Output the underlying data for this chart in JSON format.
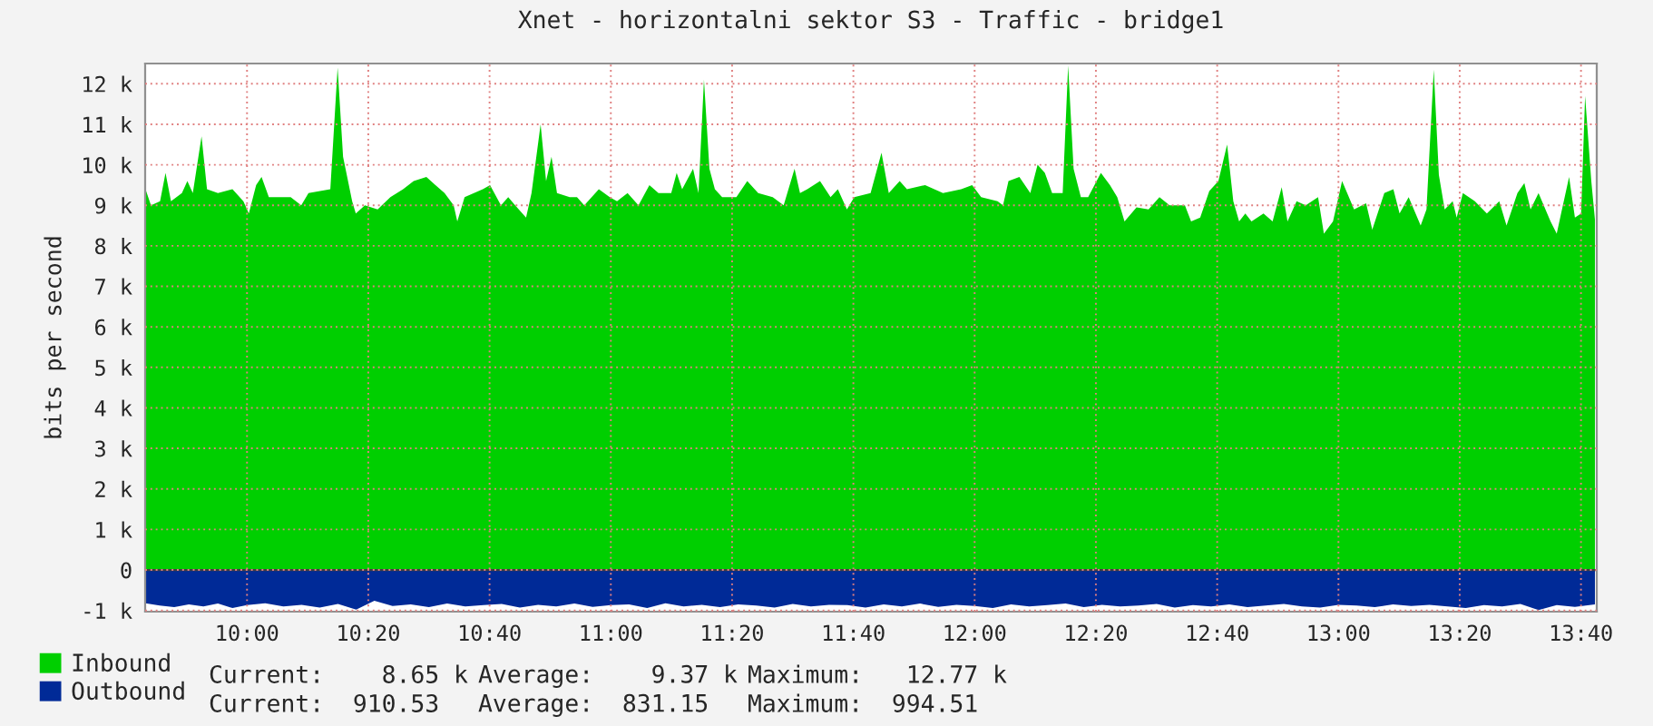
{
  "chart_data": {
    "type": "area",
    "title": "Xnet - horizontalni sektor S3 - Traffic - bridge1",
    "ylabel": "bits per second",
    "xlim": [
      9.72,
      13.71
    ],
    "xticks": [
      {
        "value": 10,
        "label": "10:00"
      },
      {
        "value": 10.3333,
        "label": "10:20"
      },
      {
        "value": 10.6667,
        "label": "10:40"
      },
      {
        "value": 11,
        "label": "11:00"
      },
      {
        "value": 11.3333,
        "label": "11:20"
      },
      {
        "value": 11.6667,
        "label": "11:40"
      },
      {
        "value": 12,
        "label": "12:00"
      },
      {
        "value": 12.3333,
        "label": "12:20"
      },
      {
        "value": 12.6667,
        "label": "12:40"
      },
      {
        "value": 13,
        "label": "13:00"
      },
      {
        "value": 13.3333,
        "label": "13:20"
      },
      {
        "value": 13.6667,
        "label": "13:40"
      }
    ],
    "ylim": [
      -1030,
      12500
    ],
    "yticks": [
      {
        "value": -1000,
        "label": "-1 k"
      },
      0,
      {
        "value": 1000,
        "label": "1 k"
      },
      {
        "value": 2000,
        "label": "2 k"
      },
      {
        "value": 3000,
        "label": "3 k"
      },
      {
        "value": 4000,
        "label": "4 k"
      },
      {
        "value": 5000,
        "label": "5 k"
      },
      {
        "value": 6000,
        "label": "6 k"
      },
      {
        "value": 7000,
        "label": "7 k"
      },
      {
        "value": 8000,
        "label": "8 k"
      },
      {
        "value": 9000,
        "label": "9 k"
      },
      {
        "value": 10000,
        "label": "10 k"
      },
      {
        "value": 11000,
        "label": "11 k"
      },
      {
        "value": 12000,
        "label": "12 k"
      }
    ],
    "grid": true,
    "legend": "bottom",
    "series": [
      {
        "name": "Inbound",
        "color": "#00cf00",
        "x": [
          9.721,
          9.736,
          9.761,
          9.776,
          9.791,
          9.821,
          9.836,
          9.851,
          9.875,
          9.89,
          9.92,
          9.96,
          9.99,
          10.005,
          10.025,
          10.04,
          10.06,
          10.095,
          10.12,
          10.149,
          10.169,
          10.229,
          10.249,
          10.264,
          10.289,
          10.299,
          10.324,
          10.359,
          10.394,
          10.429,
          10.458,
          10.493,
          10.518,
          10.543,
          10.568,
          10.578,
          10.598,
          10.648,
          10.668,
          10.698,
          10.718,
          10.737,
          10.767,
          10.782,
          10.807,
          10.822,
          10.837,
          10.852,
          10.887,
          10.907,
          10.927,
          10.967,
          10.997,
          11.017,
          11.046,
          11.076,
          11.106,
          11.131,
          11.166,
          11.181,
          11.196,
          11.226,
          11.241,
          11.256,
          11.271,
          11.286,
          11.306,
          11.345,
          11.375,
          11.405,
          11.445,
          11.475,
          11.505,
          11.52,
          11.54,
          11.575,
          11.604,
          11.624,
          11.649,
          11.669,
          11.714,
          11.744,
          11.764,
          11.794,
          11.814,
          11.864,
          11.913,
          11.963,
          11.993,
          12.018,
          12.063,
          12.078,
          12.093,
          12.123,
          12.153,
          12.173,
          12.193,
          12.213,
          12.242,
          12.257,
          12.272,
          12.292,
          12.312,
          12.347,
          12.372,
          12.392,
          12.412,
          12.445,
          12.478,
          12.508,
          12.536,
          12.578,
          12.595,
          12.62,
          12.645,
          12.67,
          12.694,
          12.711,
          12.727,
          12.744,
          12.761,
          12.794,
          12.819,
          12.844,
          12.86,
          12.885,
          12.91,
          12.944,
          12.96,
          12.985,
          13.01,
          13.043,
          13.076,
          13.093,
          13.126,
          13.151,
          13.168,
          13.193,
          13.226,
          13.242,
          13.262,
          13.276,
          13.292,
          13.314,
          13.325,
          13.342,
          13.375,
          13.408,
          13.442,
          13.462,
          13.492,
          13.511,
          13.528,
          13.55,
          13.583,
          13.6,
          13.612,
          13.634,
          13.65,
          13.667,
          13.678,
          13.695,
          13.705
        ],
        "values": [
          9400,
          9000,
          9100,
          9800,
          9100,
          9300,
          9600,
          9300,
          10700,
          9400,
          9300,
          9400,
          9100,
          8800,
          9500,
          9700,
          9200,
          9200,
          9200,
          9000,
          9300,
          9400,
          12400,
          10200,
          9100,
          8800,
          9000,
          8900,
          9200,
          9400,
          9600,
          9700,
          9500,
          9300,
          9000,
          8600,
          9200,
          9400,
          9500,
          9000,
          9200,
          9000,
          8700,
          9300,
          11000,
          9600,
          10200,
          9300,
          9200,
          9200,
          9000,
          9400,
          9200,
          9100,
          9300,
          9000,
          9500,
          9300,
          9300,
          9800,
          9400,
          9900,
          9300,
          12100,
          9900,
          9400,
          9200,
          9200,
          9600,
          9300,
          9200,
          9000,
          9900,
          9300,
          9400,
          9600,
          9200,
          9400,
          8900,
          9200,
          9300,
          10300,
          9300,
          9600,
          9400,
          9500,
          9300,
          9400,
          9500,
          9200,
          9100,
          9000,
          9600,
          9700,
          9300,
          10000,
          9800,
          9300,
          9300,
          12450,
          9900,
          9200,
          9200,
          9800,
          9500,
          9200,
          8600,
          8950,
          8900,
          9200,
          9000,
          9000,
          8600,
          8700,
          9350,
          9600,
          10500,
          9100,
          8600,
          8800,
          8600,
          8800,
          8600,
          9450,
          8600,
          9100,
          9000,
          9200,
          8300,
          8600,
          9600,
          8900,
          9050,
          8400,
          9300,
          9400,
          8800,
          9200,
          8500,
          8900,
          12350,
          9750,
          8900,
          9100,
          8700,
          9300,
          9100,
          8800,
          9100,
          8500,
          9300,
          9550,
          8900,
          9300,
          8600,
          8300,
          8800,
          9700,
          8700,
          8800,
          11700,
          9600,
          8650
        ]
      },
      {
        "name": "Outbound",
        "color": "#002a97",
        "x": [
          9.721,
          9.76,
          9.8,
          9.84,
          9.88,
          9.92,
          9.96,
          10.0,
          10.05,
          10.1,
          10.15,
          10.2,
          10.25,
          10.3,
          10.35,
          10.4,
          10.45,
          10.5,
          10.55,
          10.6,
          10.65,
          10.7,
          10.75,
          10.8,
          10.85,
          10.9,
          10.95,
          11.0,
          11.05,
          11.1,
          11.15,
          11.2,
          11.25,
          11.3,
          11.35,
          11.4,
          11.45,
          11.5,
          11.55,
          11.6,
          11.65,
          11.7,
          11.75,
          11.8,
          11.85,
          11.9,
          11.95,
          12.0,
          12.05,
          12.1,
          12.15,
          12.2,
          12.25,
          12.3,
          12.35,
          12.4,
          12.45,
          12.5,
          12.55,
          12.6,
          12.65,
          12.7,
          12.75,
          12.8,
          12.85,
          12.9,
          12.95,
          13.0,
          13.05,
          13.1,
          13.15,
          13.2,
          13.25,
          13.3,
          13.35,
          13.4,
          13.45,
          13.5,
          13.55,
          13.6,
          13.65,
          13.705
        ],
        "values": [
          -820,
          -880,
          -920,
          -850,
          -900,
          -830,
          -940,
          -870,
          -820,
          -900,
          -860,
          -930,
          -840,
          -980,
          -760,
          -890,
          -850,
          -920,
          -830,
          -900,
          -870,
          -840,
          -930,
          -860,
          -900,
          -830,
          -910,
          -870,
          -850,
          -940,
          -820,
          -900,
          -860,
          -920,
          -850,
          -880,
          -930,
          -840,
          -900,
          -860,
          -870,
          -930,
          -850,
          -900,
          -830,
          -910,
          -860,
          -890,
          -940,
          -850,
          -900,
          -870,
          -830,
          -920,
          -860,
          -900,
          -880,
          -840,
          -930,
          -870,
          -900,
          -850,
          -920,
          -880,
          -840,
          -900,
          -930,
          -860,
          -880,
          -920,
          -850,
          -890,
          -860,
          -900,
          -940,
          -870,
          -900,
          -840,
          -990,
          -870,
          -910,
          -850
        ]
      }
    ],
    "annotations": [
      "Current:    8.65 k",
      "Average:    9.37 k",
      "Maximum:   12.77 k",
      "Current:  910.53",
      "Average:  831.15",
      "Maximum:  994.51"
    ]
  }
}
